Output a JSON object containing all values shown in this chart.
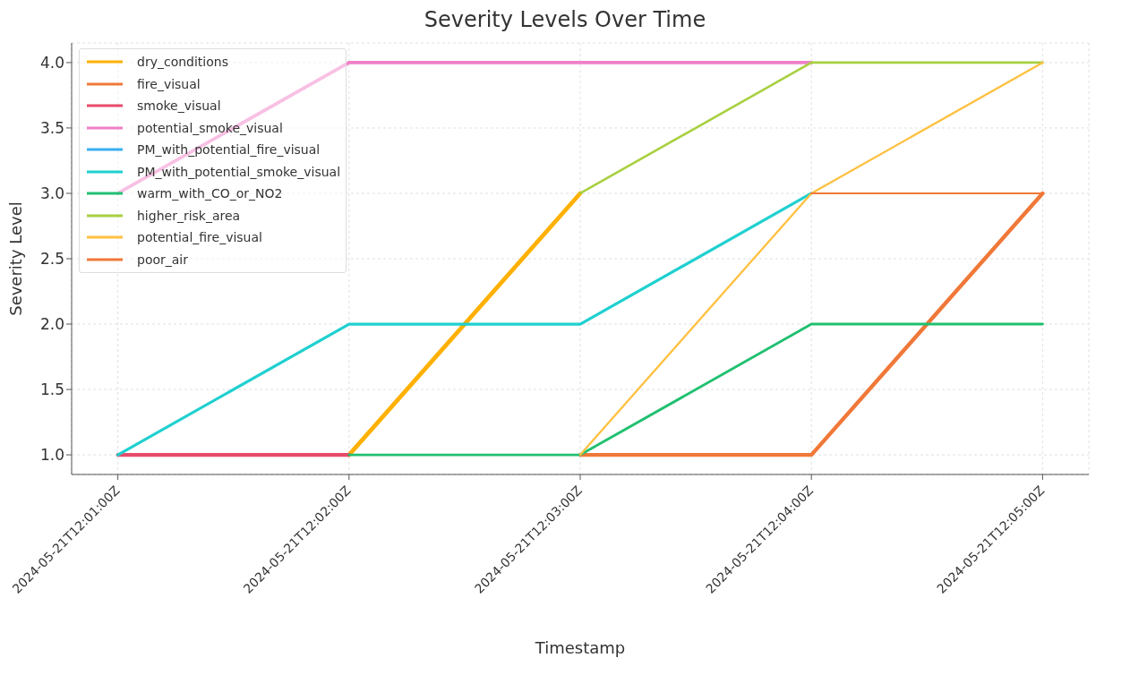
{
  "chart_data": {
    "type": "line",
    "title": "Severity Levels Over Time",
    "xlabel": "Timestamp",
    "ylabel": "Severity Level",
    "categories": [
      "2024-05-21T12:01:00Z",
      "2024-05-21T12:02:00Z",
      "2024-05-21T12:03:00Z",
      "2024-05-21T12:04:00Z",
      "2024-05-21T12:05:00Z"
    ],
    "series": [
      {
        "name": "dry_conditions",
        "color": "#ffb000",
        "values": [
          null,
          1,
          3,
          null,
          null
        ]
      },
      {
        "name": "fire_visual",
        "color": "#f07838",
        "values": [
          null,
          null,
          1,
          1,
          3
        ]
      },
      {
        "name": "smoke_visual",
        "color": "#e84a6a",
        "values": [
          1,
          1,
          null,
          null,
          null
        ]
      },
      {
        "name": "potential_smoke_visual",
        "color": "#f080c8",
        "values": [
          3,
          4,
          4,
          4,
          null
        ]
      },
      {
        "name": "PM_with_potential_fire_visual",
        "color": "#38b0f0",
        "values": [
          null,
          null,
          null,
          null,
          null
        ]
      },
      {
        "name": "PM_with_potential_smoke_visual",
        "color": "#20d0d0",
        "values": [
          1,
          2,
          2,
          3,
          null
        ]
      },
      {
        "name": "warm_with_CO_or_NO2",
        "color": "#20c070",
        "values": [
          null,
          1,
          1,
          2,
          2
        ]
      },
      {
        "name": "higher_risk_area",
        "color": "#a8d040",
        "values": [
          null,
          null,
          3,
          4,
          4
        ]
      },
      {
        "name": "potential_fire_visual",
        "color": "#ffc040",
        "values": [
          null,
          null,
          1,
          3,
          4
        ]
      },
      {
        "name": "poor_air",
        "color": "#f07838",
        "values": [
          null,
          null,
          null,
          3,
          3
        ]
      }
    ],
    "ylim": [
      0.85,
      4.15
    ],
    "yticks": [
      {
        "value": 1,
        "label": "1.0"
      },
      {
        "value": 1.5,
        "label": "1.5"
      },
      {
        "value": 2,
        "label": "2.0"
      },
      {
        "value": 2.5,
        "label": "2.5"
      },
      {
        "value": 3,
        "label": "3.0"
      },
      {
        "value": 3.5,
        "label": "3.5"
      },
      {
        "value": 4,
        "label": "4.0"
      }
    ],
    "grid": true,
    "legend": "top left",
    "line_style": "solid"
  }
}
